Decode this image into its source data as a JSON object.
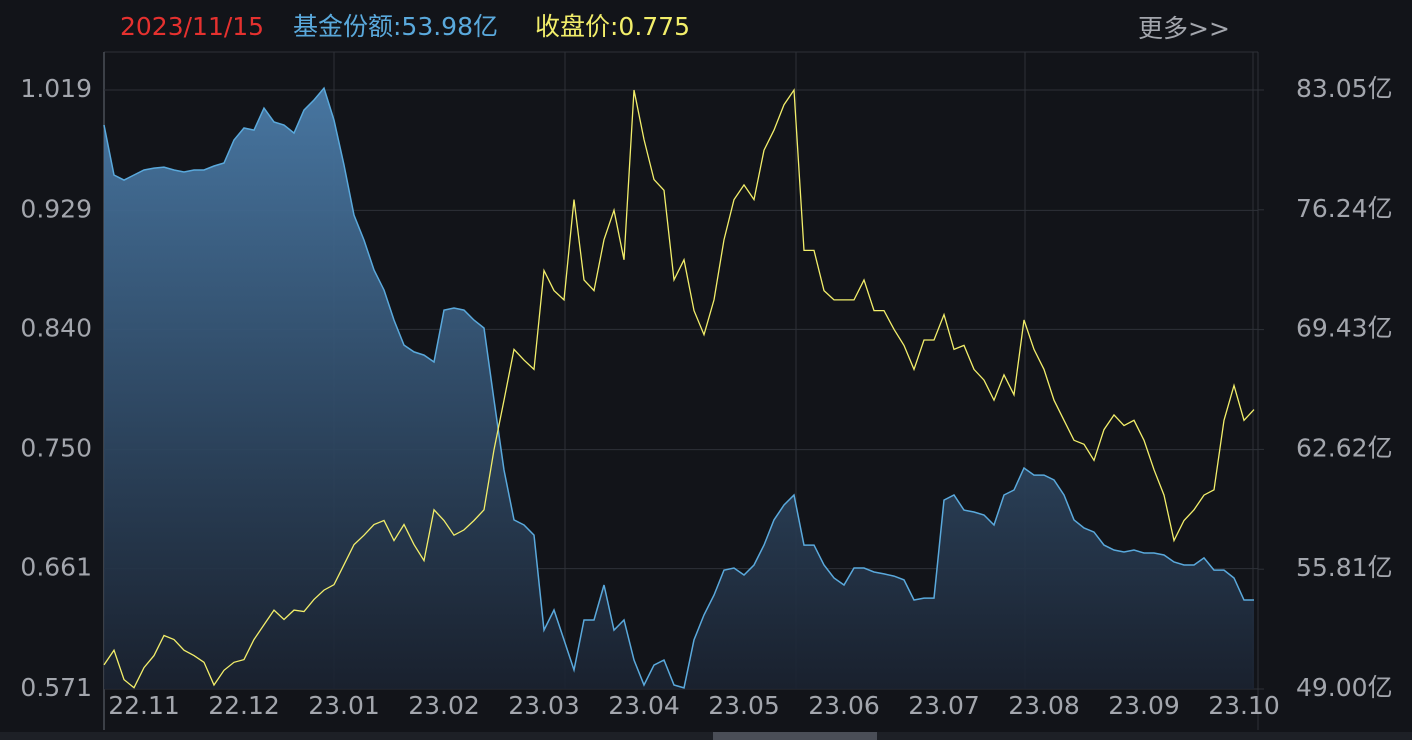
{
  "header": {
    "date": "2023/11/15",
    "fund_share": "基金份额:53.98亿",
    "close_price": "收盘价:0.775",
    "more": "更多>>"
  },
  "chart_data": {
    "type": "line",
    "categories": [
      null,
      null,
      null,
      null,
      "22.11",
      null,
      null,
      null,
      null,
      null,
      null,
      null,
      null,
      null,
      "22.12",
      null,
      null,
      null,
      null,
      null,
      null,
      null,
      null,
      null,
      "23.01",
      null,
      null,
      null,
      null,
      null,
      null,
      null,
      null,
      null,
      "23.02",
      null,
      null,
      null,
      null,
      null,
      null,
      null,
      null,
      null,
      "23.03",
      null,
      null,
      null,
      null,
      null,
      null,
      null,
      null,
      null,
      "23.04",
      null,
      null,
      null,
      null,
      null,
      null,
      null,
      null,
      null,
      "23.05",
      null,
      null,
      null,
      null,
      null,
      null,
      null,
      null,
      null,
      "23.06",
      null,
      null,
      null,
      null,
      null,
      null,
      null,
      null,
      null,
      "23.07",
      null,
      null,
      null,
      null,
      null,
      null,
      null,
      null,
      null,
      "23.08",
      null,
      null,
      null,
      null,
      null,
      null,
      null,
      null,
      null,
      "23.09",
      null,
      null,
      null,
      null,
      null,
      null,
      null,
      null,
      null,
      "23.10",
      null
    ],
    "series": [
      {
        "type": "area",
        "color": "#5aa9dc",
        "axis": "y2",
        "values": [
          81.06,
          78.22,
          77.93,
          78.22,
          78.5,
          78.61,
          78.67,
          78.5,
          78.39,
          78.5,
          78.5,
          78.73,
          78.9,
          80.21,
          80.89,
          80.77,
          82.02,
          81.23,
          81.06,
          80.6,
          81.91,
          82.48,
          83.16,
          81.34,
          78.78,
          75.94,
          74.52,
          72.82,
          71.68,
          69.97,
          68.55,
          68.16,
          67.98,
          67.59,
          70.54,
          70.66,
          70.54,
          69.97,
          69.52,
          65.43,
          61.45,
          58.61,
          58.32,
          57.75,
          52.35,
          53.49,
          51.79,
          50.08,
          52.92,
          52.92,
          54.91,
          52.35,
          52.92,
          50.65,
          49.23,
          50.36,
          50.65,
          49.23,
          49.06,
          51.79,
          53.21,
          54.34,
          55.76,
          55.88,
          55.48,
          56.05,
          57.18,
          58.61,
          59.46,
          60.03,
          57.18,
          57.18,
          56.05,
          55.31,
          54.91,
          55.88,
          55.88,
          55.65,
          55.54,
          55.42,
          55.2,
          54.06,
          54.17,
          54.17,
          59.74,
          60.03,
          59.17,
          59.06,
          58.89,
          58.32,
          60.03,
          60.31,
          61.56,
          61.16,
          61.16,
          60.88,
          60.03,
          58.61,
          58.15,
          57.92,
          57.18,
          56.9,
          56.79,
          56.9,
          56.73,
          56.73,
          56.62,
          56.22,
          56.05,
          56.05,
          56.45,
          55.76,
          55.76,
          55.31,
          54.06,
          54.06
        ]
      },
      {
        "type": "line",
        "color": "#f2ee6a",
        "values": [
          0.589,
          0.6,
          0.578,
          0.572,
          0.587,
          0.596,
          0.611,
          0.608,
          0.6,
          0.596,
          0.591,
          0.574,
          0.585,
          0.591,
          0.593,
          0.608,
          0.619,
          0.63,
          0.623,
          0.63,
          0.629,
          0.638,
          0.645,
          0.649,
          0.664,
          0.679,
          0.686,
          0.694,
          0.697,
          0.682,
          0.694,
          0.679,
          0.667,
          0.705,
          0.697,
          0.686,
          0.69,
          0.697,
          0.705,
          0.75,
          0.787,
          0.825,
          0.817,
          0.81,
          0.884,
          0.869,
          0.862,
          0.937,
          0.877,
          0.869,
          0.907,
          0.929,
          0.892,
          1.019,
          0.982,
          0.952,
          0.944,
          0.877,
          0.892,
          0.854,
          0.836,
          0.862,
          0.907,
          0.937,
          0.948,
          0.937,
          0.974,
          0.989,
          1.008,
          1.019,
          0.899,
          0.899,
          0.869,
          0.862,
          0.862,
          0.862,
          0.877,
          0.854,
          0.854,
          0.84,
          0.828,
          0.81,
          0.832,
          0.832,
          0.851,
          0.825,
          0.828,
          0.81,
          0.802,
          0.787,
          0.806,
          0.791,
          0.847,
          0.825,
          0.81,
          0.787,
          0.772,
          0.757,
          0.754,
          0.742,
          0.765,
          0.776,
          0.768,
          0.772,
          0.757,
          0.735,
          0.716,
          0.682,
          0.697,
          0.705,
          0.716,
          0.72,
          0.772,
          0.798,
          0.772,
          0.78
        ]
      }
    ],
    "ylim": [
      0.571,
      1.019
    ],
    "yticks": [
      0.571,
      0.661,
      {
        "value": 0.75,
        "label": "0.750"
      },
      {
        "value": 0.84,
        "label": "0.840"
      },
      0.929,
      1.019
    ],
    "y2lim": [
      49.0,
      83.05
    ],
    "y2ticks": [
      {
        "value": 49.0,
        "label": "49.00亿"
      },
      {
        "value": 55.81,
        "label": "55.81亿"
      },
      {
        "value": 62.62,
        "label": "62.62亿"
      },
      {
        "value": 69.43,
        "label": "69.43亿"
      },
      {
        "value": 76.24,
        "label": "76.24亿"
      },
      {
        "value": 83.05,
        "label": "83.05亿"
      }
    ],
    "grid": true
  }
}
